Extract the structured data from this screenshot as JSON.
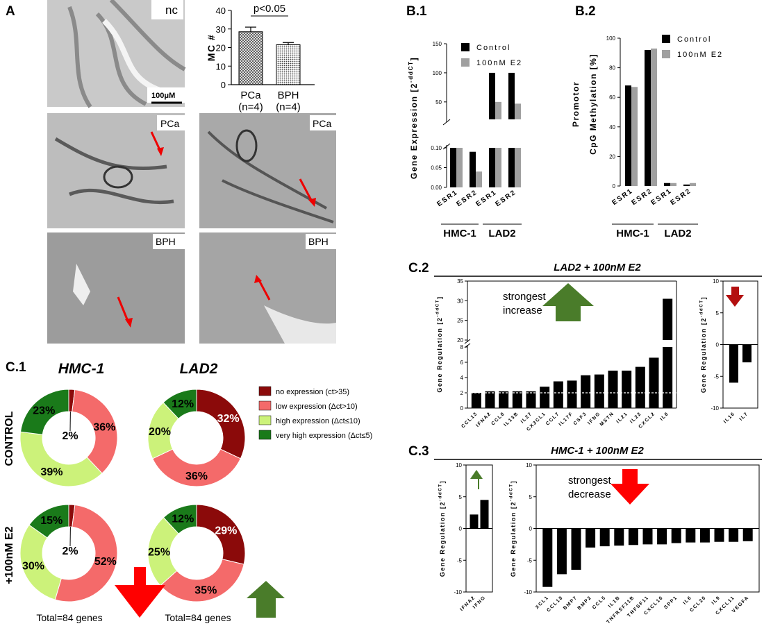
{
  "panel_a": {
    "label": "A",
    "micro_labels": {
      "nc": "nc",
      "pca1": "PCa",
      "pca2": "PCa",
      "bph1": "BPH",
      "bph2": "BPH"
    },
    "scale_bar": "100μM"
  },
  "panel_b1": {
    "label": "B.1"
  },
  "panel_b2": {
    "label": "B.2"
  },
  "panel_c1": {
    "label": "C.1",
    "col_hmc": "HMC-1",
    "col_lad": "LAD2",
    "row_control": "CONTROL",
    "row_e2": "+100nM E2",
    "total_hmc": "Total=84 genes",
    "total_lad": "Total=84 genes",
    "legend": [
      {
        "label": "no expression (ct>35)",
        "color": "#8b0a0a"
      },
      {
        "label": "low expression (Δct>10)",
        "color": "#f46a6a"
      },
      {
        "label": "high expression (Δct≤10)",
        "color": "#ccf27a"
      },
      {
        "label": "very high expression (Δct≤5)",
        "color": "#1a7a1a"
      }
    ]
  },
  "panel_c2": {
    "label": "C.2",
    "title": "LAD2 + 100nM E2",
    "note": "strongest increase"
  },
  "panel_c3": {
    "label": "C.3",
    "title": "HMC-1 + 100nM E2",
    "note": "strongest decrease"
  },
  "chart_data": [
    {
      "id": "mc_count",
      "type": "bar",
      "title": "p<0.05",
      "ylabel": "MC #",
      "categories": [
        "PCa\n(n=4)",
        "BPH\n(n=4)"
      ],
      "cat_lines": [
        [
          "PCa",
          "(n=4)"
        ],
        [
          "BPH",
          "(n=4)"
        ]
      ],
      "values": [
        28.5,
        21.5
      ],
      "errors": [
        2.5,
        1.2
      ],
      "ylim": [
        0,
        40
      ],
      "yticks": [
        "0",
        "10",
        "20",
        "30",
        "40"
      ]
    },
    {
      "id": "b1",
      "type": "bar",
      "ylabel": "Gene Expression [2-ddCT]",
      "categories": [
        "ESR1",
        "ESR2",
        "ESR1",
        "ESR2"
      ],
      "groups": [
        "HMC-1",
        "LAD2"
      ],
      "series": [
        {
          "name": "Control",
          "values": [
            20,
            0.09,
            100,
            100
          ],
          "color": "#000000"
        },
        {
          "name": "100nM E2",
          "values": [
            15,
            0.04,
            50,
            47
          ],
          "color": "#a0a0a0"
        }
      ],
      "yticks_low": [
        "0.00",
        "0.05",
        "0.10"
      ],
      "yticks_high": [
        "50",
        "100",
        "150"
      ],
      "broken_axis": true
    },
    {
      "id": "b2",
      "type": "bar",
      "ylabel": "Promotor CpG Methylation [%]",
      "categories": [
        "ESR1",
        "ESR2",
        "ESR1",
        "ESR2"
      ],
      "groups": [
        "HMC-1",
        "LAD2"
      ],
      "series": [
        {
          "name": "Control",
          "values": [
            68,
            92,
            2,
            1
          ],
          "color": "#000000"
        },
        {
          "name": "100nM E2",
          "values": [
            67,
            93,
            2,
            2
          ],
          "color": "#a0a0a0"
        }
      ],
      "ylim": [
        0,
        100
      ],
      "yticks": [
        "0",
        "20",
        "40",
        "60",
        "80",
        "100"
      ]
    },
    {
      "id": "c1_donuts",
      "type": "pie",
      "charts": [
        {
          "name": "HMC-1 CONTROL",
          "values": [
            2,
            36,
            39,
            23
          ],
          "labels": [
            "2%",
            "36%",
            "39%",
            "23%"
          ]
        },
        {
          "name": "LAD2 CONTROL",
          "values": [
            32,
            36,
            20,
            12
          ],
          "labels": [
            "32%",
            "36%",
            "20%",
            "12%"
          ]
        },
        {
          "name": "HMC-1 +100nM E2",
          "values": [
            2,
            52,
            30,
            15
          ],
          "labels": [
            "2%",
            "52%",
            "30%",
            "15%"
          ]
        },
        {
          "name": "LAD2 +100nM E2",
          "values": [
            29,
            35,
            25,
            12
          ],
          "labels": [
            "29%",
            "35%",
            "25%",
            "12%"
          ]
        }
      ]
    },
    {
      "id": "c2_up",
      "type": "bar",
      "ylabel": "Gene Regulation [2-ddCT]",
      "categories": [
        "CCL13",
        "IFNA2",
        "CCL8",
        "IL13B",
        "IL27",
        "CX3CL1",
        "CCL7",
        "IL17F",
        "CSF3",
        "IFNG",
        "MSTN",
        "IL21",
        "IL22",
        "CXCL2",
        "IL8"
      ],
      "values": [
        2.0,
        2.2,
        2.2,
        2.2,
        2.2,
        2.8,
        3.5,
        3.6,
        4.3,
        4.4,
        4.9,
        4.9,
        5.4,
        6.6,
        30.5
      ],
      "yticks_low": [
        "0",
        "2",
        "4",
        "6",
        "8"
      ],
      "yticks_high": [
        "20",
        "25",
        "30",
        "35"
      ],
      "broken_axis": true
    },
    {
      "id": "c2_down",
      "type": "bar",
      "ylabel": "Gene Regulation [2-ddCT]",
      "categories": [
        "IL16",
        "IL7"
      ],
      "values": [
        -6.0,
        -2.8
      ],
      "ylim": [
        -10,
        10
      ],
      "yticks": [
        "-10",
        "-5",
        "0",
        "5",
        "10"
      ]
    },
    {
      "id": "c3_up",
      "type": "bar",
      "ylabel": "Gene Regulation [2-ddCT]",
      "categories": [
        "IFNA2",
        "IFNG"
      ],
      "values": [
        2.2,
        4.5
      ],
      "ylim": [
        -10,
        10
      ],
      "yticks": [
        "-10",
        "-5",
        "0",
        "5",
        "10"
      ]
    },
    {
      "id": "c3_down",
      "type": "bar",
      "ylabel": "Gene Regulation [2-ddCT]",
      "categories": [
        "XCL1",
        "CCL18",
        "BMP7",
        "BMP2",
        "CCL5",
        "IL1B",
        "TNFRSF11B",
        "THFSF11",
        "CXCL16",
        "SPP1",
        "IL6",
        "CCL20",
        "IL9",
        "CXCL11",
        "VEGFA"
      ],
      "values": [
        -9.2,
        -7.2,
        -6.5,
        -3.0,
        -2.8,
        -2.7,
        -2.6,
        -2.5,
        -2.5,
        -2.3,
        -2.2,
        -2.2,
        -2.1,
        -2.1,
        -2.0
      ],
      "ylim": [
        -10,
        10
      ],
      "yticks": [
        "-10",
        "-5",
        "0",
        "5",
        "10"
      ]
    }
  ]
}
